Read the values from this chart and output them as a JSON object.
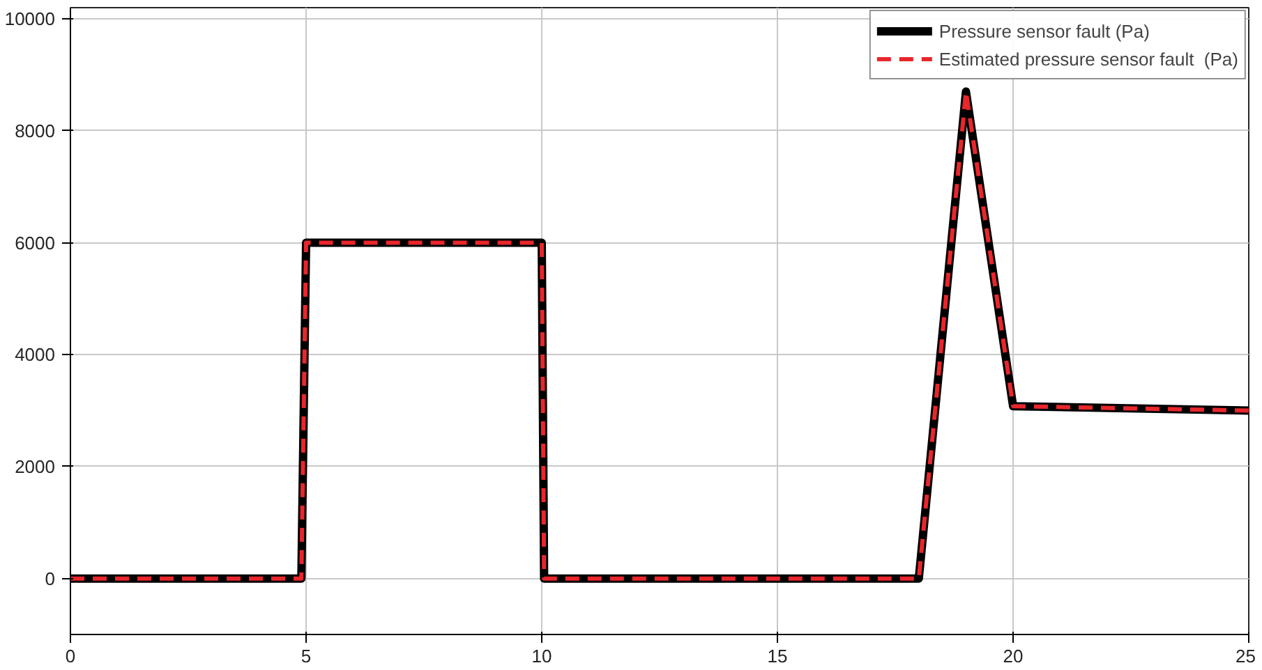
{
  "chart_data": {
    "type": "line",
    "x": [
      0,
      4.9,
      5,
      10,
      10.05,
      18,
      19,
      20,
      25
    ],
    "series": [
      {
        "name": "Pressure sensor fault (Pa)",
        "color": "#000000",
        "values": [
          0,
          0,
          6000,
          6000,
          0,
          0,
          8700,
          3080,
          3000
        ],
        "line_style": "solid"
      },
      {
        "name": "Estimated pressure sensor fault  (Pa)",
        "color": "#e8262b",
        "values": [
          0,
          0,
          6000,
          6000,
          0,
          0,
          8700,
          3080,
          3000
        ],
        "line_style": "dashed"
      }
    ],
    "xlim": [
      0,
      25
    ],
    "ylim": [
      -1000,
      10200
    ],
    "xticks": [
      0,
      5,
      10,
      15,
      20,
      25
    ],
    "yticks": [
      0,
      2000,
      4000,
      6000,
      8000,
      10000
    ],
    "grid": true,
    "legend": "top right",
    "marker": "none"
  }
}
